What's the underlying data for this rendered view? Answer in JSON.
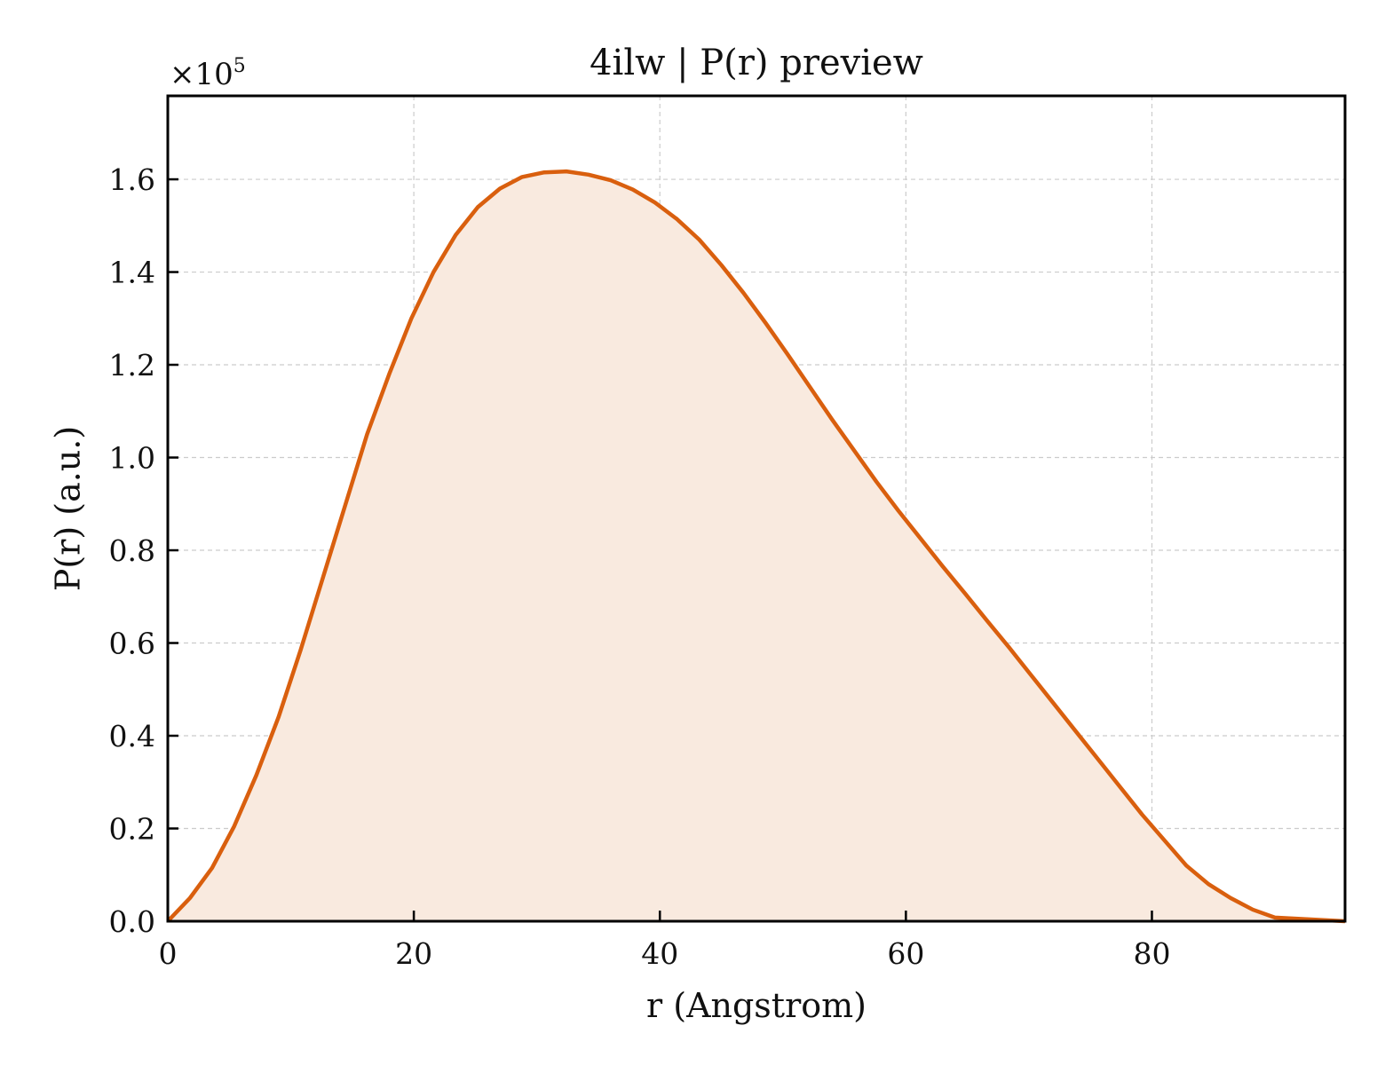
{
  "chart_data": {
    "type": "area",
    "title": "4ilw | P(r) preview",
    "xlabel": "r (Angstrom)",
    "ylabel": "P(r) (a.u.)",
    "y_multiplier_base": "×10",
    "y_multiplier_exp": "5",
    "xlim": [
      0,
      95.7
    ],
    "ylim": [
      0,
      1.78
    ],
    "xticks": [
      0,
      20,
      40,
      60,
      80
    ],
    "xtick_labels": [
      "0",
      "20",
      "40",
      "60",
      "80"
    ],
    "yticks": [
      0.0,
      0.2,
      0.4,
      0.6,
      0.8,
      1.0,
      1.2,
      1.4,
      1.6
    ],
    "ytick_labels": [
      "0.0",
      "0.2",
      "0.4",
      "0.6",
      "0.8",
      "1.0",
      "1.2",
      "1.4",
      "1.6"
    ],
    "grid": true,
    "line_color": "#d95f0e",
    "fill_color": "#f9eadf",
    "series": [
      {
        "x": [
          0,
          1.8,
          3.6,
          5.4,
          7.2,
          9.0,
          10.8,
          12.6,
          14.4,
          16.2,
          18.0,
          19.8,
          21.6,
          23.4,
          25.2,
          27.0,
          28.8,
          30.6,
          32.4,
          34.2,
          36.0,
          37.8,
          39.6,
          41.4,
          43.2,
          45.0,
          46.8,
          48.6,
          50.4,
          52.2,
          54.0,
          55.8,
          57.6,
          59.4,
          61.2,
          63.0,
          64.8,
          66.6,
          68.4,
          70.2,
          72.0,
          73.8,
          75.6,
          77.4,
          79.2,
          81.0,
          82.8,
          84.6,
          86.4,
          88.2,
          90.0,
          95.7
        ],
        "y": [
          0.0,
          0.05,
          0.115,
          0.205,
          0.315,
          0.44,
          0.585,
          0.74,
          0.895,
          1.05,
          1.18,
          1.3,
          1.4,
          1.48,
          1.54,
          1.58,
          1.605,
          1.615,
          1.617,
          1.61,
          1.598,
          1.578,
          1.55,
          1.514,
          1.47,
          1.415,
          1.355,
          1.29,
          1.222,
          1.152,
          1.082,
          1.015,
          0.948,
          0.885,
          0.825,
          0.765,
          0.707,
          0.648,
          0.59,
          0.53,
          0.47,
          0.41,
          0.35,
          0.29,
          0.23,
          0.175,
          0.12,
          0.08,
          0.05,
          0.025,
          0.008,
          0.0
        ]
      }
    ]
  }
}
